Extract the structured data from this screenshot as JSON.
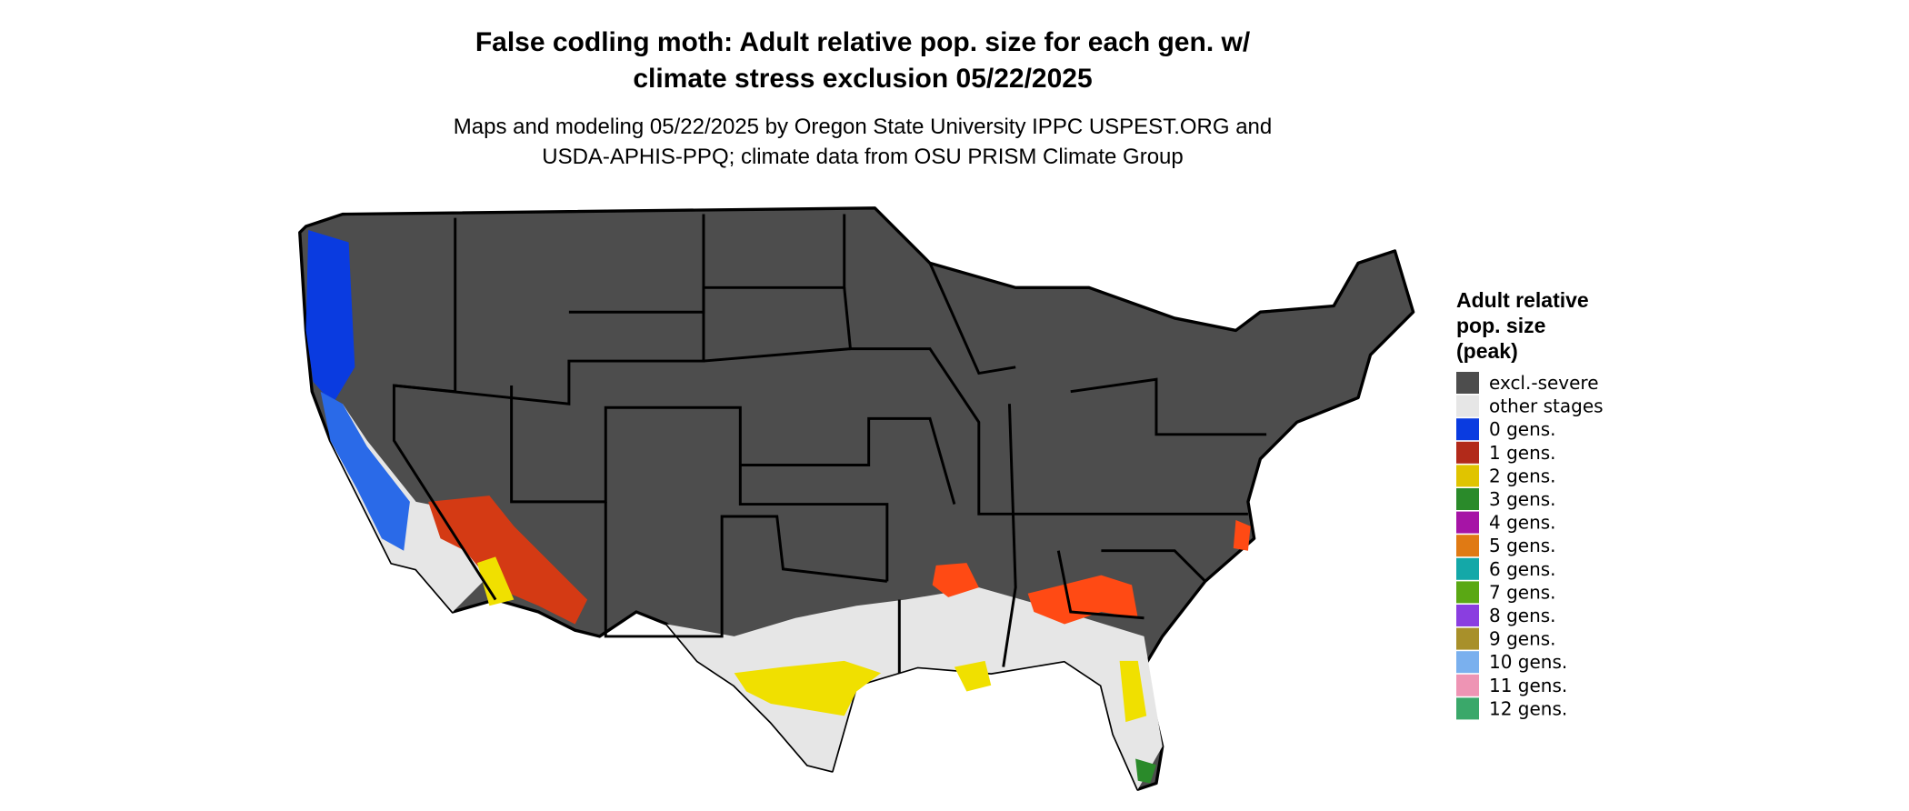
{
  "header": {
    "title": [
      "False codling moth: Adult relative pop. size for each gen. w/",
      "climate stress exclusion 05/22/2025"
    ],
    "subtitle": [
      "Maps and modeling 05/22/2025 by Oregon State University IPPC USPEST.ORG and",
      "USDA-APHIS-PPQ; climate data from OSU PRISM Climate Group"
    ]
  },
  "legend": {
    "title": [
      "Adult relative",
      "pop. size",
      "(peak)"
    ],
    "items": [
      {
        "label": "excl.-severe",
        "color": "#4d4d4d"
      },
      {
        "label": "other stages",
        "color": "#e6e6e6"
      },
      {
        "label": "0 gens.",
        "color": "#0a3be0"
      },
      {
        "label": "1 gens.",
        "color": "#b22a1a"
      },
      {
        "label": "2 gens.",
        "color": "#e0c400"
      },
      {
        "label": "3 gens.",
        "color": "#2a8a2a"
      },
      {
        "label": "4 gens.",
        "color": "#a614a6"
      },
      {
        "label": "5 gens.",
        "color": "#e07a14"
      },
      {
        "label": "6 gens.",
        "color": "#14a8a8"
      },
      {
        "label": "7 gens.",
        "color": "#5aa814"
      },
      {
        "label": "8 gens.",
        "color": "#8a3ee0"
      },
      {
        "label": "9 gens.",
        "color": "#a8902a"
      },
      {
        "label": "10 gens.",
        "color": "#7ab0ee"
      },
      {
        "label": "11 gens.",
        "color": "#ee94b4"
      },
      {
        "label": "12 gens.",
        "color": "#3aa86a"
      }
    ]
  }
}
